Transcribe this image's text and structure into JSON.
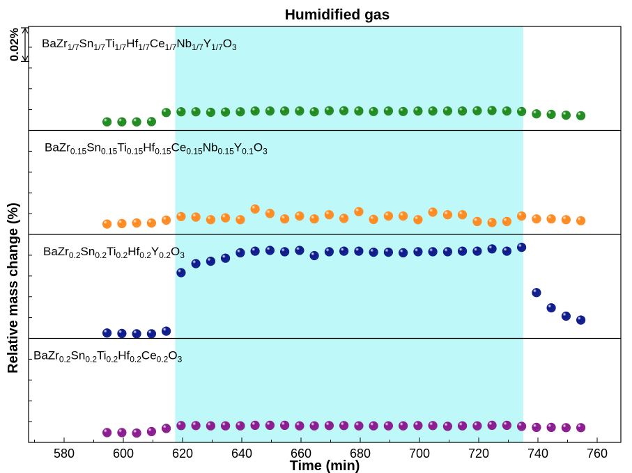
{
  "chart_data": {
    "type": "scatter",
    "title": "Humidified gas",
    "xlabel": "Time (min)",
    "ylabel": "Relative mass change (%)",
    "scale_bar_label": "0.02%",
    "xlim": [
      568,
      768
    ],
    "xticks": [
      580,
      600,
      620,
      640,
      660,
      680,
      700,
      720,
      740,
      760
    ],
    "shaded_region": {
      "x_start": 617.5,
      "x_end": 735,
      "color": "#bff8f8"
    },
    "panels": [
      {
        "name_parts": [
          {
            "t": "BaZr"
          },
          {
            "t": "1/7",
            "sub": true
          },
          {
            "t": "Sn"
          },
          {
            "t": "1/7",
            "sub": true
          },
          {
            "t": "Ti"
          },
          {
            "t": "1/7",
            "sub": true
          },
          {
            "t": "Hf"
          },
          {
            "t": "1/7",
            "sub": true
          },
          {
            "t": "Ce"
          },
          {
            "t": "1/7",
            "sub": true
          },
          {
            "t": "Nb"
          },
          {
            "t": "1/7",
            "sub": true
          },
          {
            "t": "Y"
          },
          {
            "t": "1/7",
            "sub": true
          },
          {
            "t": "O"
          },
          {
            "t": "3",
            "sub": true
          }
        ],
        "color": "#1f8a1f",
        "x": [
          594.5,
          599.5,
          604.5,
          609.5,
          614.5,
          619.5,
          624.5,
          629.5,
          634.5,
          639.5,
          644.5,
          649.5,
          654.5,
          659.5,
          664.5,
          669.5,
          674.5,
          679.5,
          684.5,
          689.5,
          694.5,
          699.5,
          704.5,
          709.5,
          714.5,
          719.5,
          724.5,
          729.5,
          734.5,
          739.5,
          744.5,
          749.5,
          754.5
        ],
        "y": [
          0.0033,
          0.0033,
          0.0033,
          0.0034,
          0.0069,
          0.0072,
          0.0072,
          0.007,
          0.0071,
          0.0072,
          0.0075,
          0.0075,
          0.0075,
          0.0075,
          0.0072,
          0.0076,
          0.0076,
          0.0075,
          0.0073,
          0.0075,
          0.0073,
          0.0075,
          0.0075,
          0.0075,
          0.0075,
          0.0076,
          0.0077,
          0.0075,
          0.0073,
          0.0064,
          0.0062,
          0.0059,
          0.0057
        ]
      },
      {
        "name_parts": [
          {
            "t": "BaZr"
          },
          {
            "t": "0.15",
            "sub": true
          },
          {
            "t": "Sn"
          },
          {
            "t": "0.15",
            "sub": true
          },
          {
            "t": "Ti"
          },
          {
            "t": "0.15",
            "sub": true
          },
          {
            "t": "Hf"
          },
          {
            "t": "0.15",
            "sub": true
          },
          {
            "t": "Ce"
          },
          {
            "t": "0.15",
            "sub": true
          },
          {
            "t": "Nb"
          },
          {
            "t": "0.15",
            "sub": true
          },
          {
            "t": "Y"
          },
          {
            "t": "0.1",
            "sub": true
          },
          {
            "t": "O"
          },
          {
            "t": "3",
            "sub": true
          }
        ],
        "color": "#ff8a1f",
        "x": [
          594.5,
          599.5,
          604.5,
          609.5,
          614.5,
          619.5,
          624.5,
          629.5,
          634.5,
          639.5,
          644.5,
          649.5,
          654.5,
          659.5,
          664.5,
          669.5,
          674.5,
          679.5,
          684.5,
          689.5,
          694.5,
          699.5,
          704.5,
          709.5,
          714.5,
          719.5,
          724.5,
          729.5,
          734.5,
          739.5,
          744.5,
          749.5,
          754.5
        ],
        "y": [
          0.004,
          0.0042,
          0.0044,
          0.0044,
          0.0055,
          0.0069,
          0.0067,
          0.0057,
          0.0064,
          0.0057,
          0.0098,
          0.0081,
          0.006,
          0.0071,
          0.006,
          0.0076,
          0.0062,
          0.0088,
          0.0058,
          0.0071,
          0.0071,
          0.0057,
          0.0086,
          0.0076,
          0.0076,
          0.005,
          0.0046,
          0.005,
          0.0071,
          0.006,
          0.006,
          0.0057,
          0.0053
        ]
      },
      {
        "name_parts": [
          {
            "t": "BaZr"
          },
          {
            "t": "0.2",
            "sub": true
          },
          {
            "t": "Sn"
          },
          {
            "t": "0.2",
            "sub": true
          },
          {
            "t": "Ti"
          },
          {
            "t": "0.2",
            "sub": true
          },
          {
            "t": "Hf"
          },
          {
            "t": "0.2",
            "sub": true
          },
          {
            "t": "Y"
          },
          {
            "t": "0.2",
            "sub": true
          },
          {
            "t": "O"
          },
          {
            "t": "3",
            "sub": true
          }
        ],
        "color": "#0c1a8a",
        "x": [
          594.5,
          599.5,
          604.5,
          609.5,
          614.5,
          619.5,
          624.5,
          629.5,
          634.5,
          639.5,
          644.5,
          649.5,
          654.5,
          659.5,
          664.5,
          669.5,
          674.5,
          679.5,
          684.5,
          689.5,
          694.5,
          699.5,
          704.5,
          709.5,
          714.5,
          719.5,
          724.5,
          729.5,
          734.5,
          739.5,
          744.5,
          749.5,
          754.5
        ],
        "y": [
          0.0021,
          0.0019,
          0.0018,
          0.0018,
          0.0028,
          0.0254,
          0.0289,
          0.0298,
          0.031,
          0.0331,
          0.0337,
          0.034,
          0.0335,
          0.034,
          0.032,
          0.0335,
          0.0337,
          0.0337,
          0.0333,
          0.0333,
          0.0331,
          0.0335,
          0.0335,
          0.0335,
          0.0337,
          0.0337,
          0.0346,
          0.0337,
          0.0352,
          0.0177,
          0.0118,
          0.0086,
          0.0071
        ]
      },
      {
        "name_parts": [
          {
            "t": "BaZr"
          },
          {
            "t": "0.2",
            "sub": true
          },
          {
            "t": "Sn"
          },
          {
            "t": "0.2",
            "sub": true
          },
          {
            "t": "Ti"
          },
          {
            "t": "0.2",
            "sub": true
          },
          {
            "t": "Hf"
          },
          {
            "t": "0.2",
            "sub": true
          },
          {
            "t": "Ce"
          },
          {
            "t": "0.2",
            "sub": true
          },
          {
            "t": "O"
          },
          {
            "t": "3",
            "sub": true
          }
        ],
        "color": "#8a1a8f",
        "x": [
          594.5,
          599.5,
          604.5,
          609.5,
          614.5,
          619.5,
          624.5,
          629.5,
          634.5,
          639.5,
          644.5,
          649.5,
          654.5,
          659.5,
          664.5,
          669.5,
          674.5,
          679.5,
          684.5,
          689.5,
          694.5,
          699.5,
          704.5,
          709.5,
          714.5,
          719.5,
          724.5,
          729.5,
          734.5,
          739.5,
          744.5,
          749.5,
          754.5
        ],
        "y": [
          0.0038,
          0.0038,
          0.0036,
          0.0042,
          0.0054,
          0.0065,
          0.0065,
          0.0064,
          0.0064,
          0.0064,
          0.0066,
          0.0066,
          0.0066,
          0.0064,
          0.0064,
          0.0065,
          0.0065,
          0.0064,
          0.0064,
          0.0064,
          0.0064,
          0.0065,
          0.0065,
          0.0062,
          0.0064,
          0.0064,
          0.0066,
          0.0066,
          0.0062,
          0.0058,
          0.0058,
          0.0057,
          0.0057
        ]
      }
    ]
  }
}
